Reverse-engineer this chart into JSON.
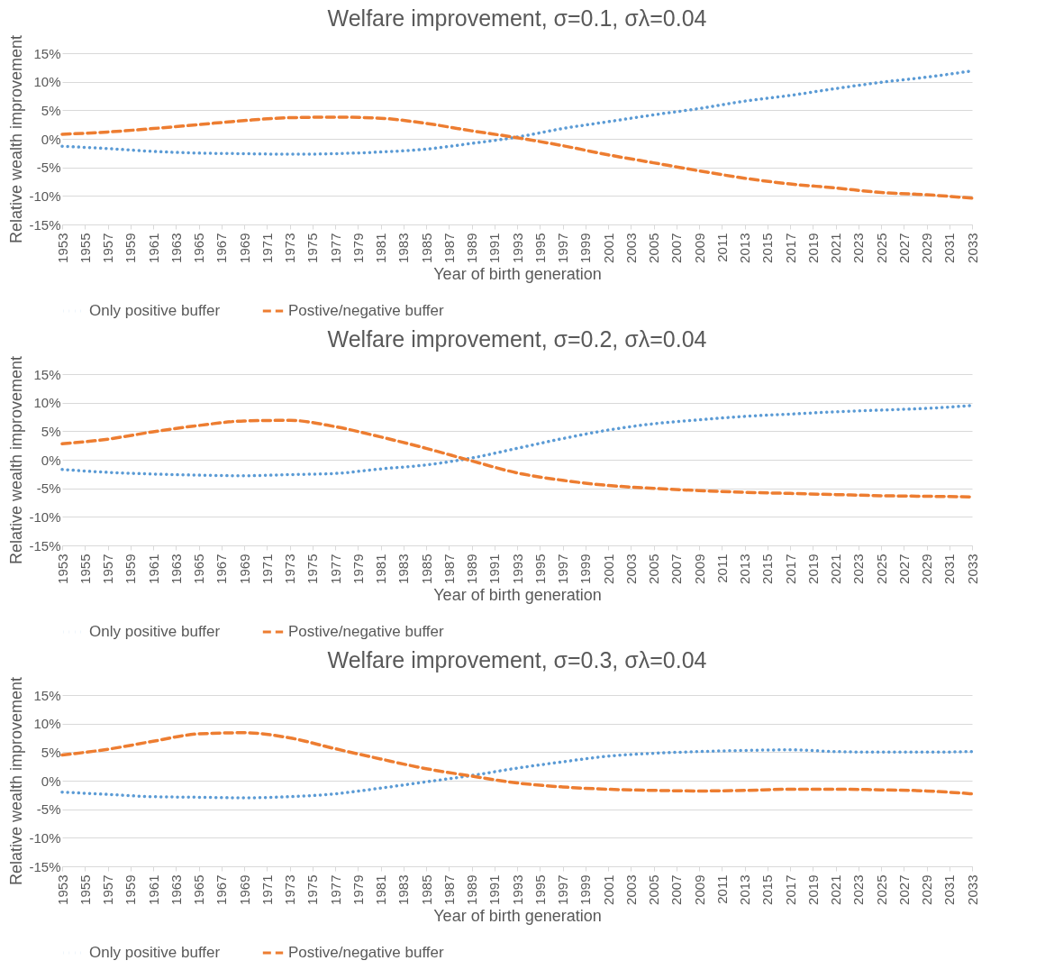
{
  "chart_data": [
    {
      "type": "line",
      "title": "Welfare improvement, σ=0.1, σλ=0.04",
      "xlabel": "Year of birth generation",
      "ylabel": "Relative wealth improvement",
      "x": [
        1953,
        1957,
        1961,
        1965,
        1969,
        1973,
        1977,
        1981,
        1985,
        1989,
        1993,
        1997,
        2001,
        2005,
        2009,
        2013,
        2017,
        2021,
        2025,
        2029,
        2033
      ],
      "xlim": [
        1953,
        2033
      ],
      "xticks": [
        1953,
        1955,
        1957,
        1959,
        1961,
        1963,
        1965,
        1967,
        1969,
        1971,
        1973,
        1975,
        1977,
        1979,
        1981,
        1983,
        1985,
        1987,
        1989,
        1991,
        1993,
        1995,
        1997,
        1999,
        2001,
        2003,
        2005,
        2007,
        2009,
        2011,
        2013,
        2015,
        2017,
        2019,
        2021,
        2023,
        2025,
        2027,
        2029,
        2031,
        2033
      ],
      "ylim": [
        -15,
        15
      ],
      "yticks": [
        {
          "value": -15,
          "label": "-15%"
        },
        {
          "value": -10,
          "label": "-10%"
        },
        {
          "value": -5,
          "label": "-5%"
        },
        {
          "value": 0,
          "label": "0%"
        },
        {
          "value": 5,
          "label": "5%"
        },
        {
          "value": 10,
          "label": "10%"
        },
        {
          "value": 15,
          "label": "15%"
        }
      ],
      "grid": "y",
      "legend": "bottom",
      "series": [
        {
          "name": "Only positive buffer",
          "color": "#5b9bd5",
          "line_style": "dotted",
          "values": [
            -1.3,
            -1.7,
            -2.2,
            -2.5,
            -2.6,
            -2.7,
            -2.6,
            -2.3,
            -1.8,
            -0.8,
            0.3,
            1.8,
            3.0,
            4.2,
            5.3,
            6.6,
            7.6,
            8.8,
            9.9,
            10.8,
            11.9
          ]
        },
        {
          "name": "Postive/negative buffer",
          "color": "#ed7d31",
          "line_style": "dashed",
          "values": [
            0.8,
            1.2,
            1.8,
            2.5,
            3.2,
            3.7,
            3.8,
            3.6,
            2.7,
            1.4,
            0.2,
            -1.2,
            -2.8,
            -4.2,
            -5.6,
            -6.9,
            -7.9,
            -8.6,
            -9.4,
            -9.8,
            -10.4
          ]
        }
      ]
    },
    {
      "type": "line",
      "title": "Welfare improvement, σ=0.2, σλ=0.04",
      "xlabel": "Year of birth generation",
      "ylabel": "Relative wealth improvement",
      "x": [
        1953,
        1957,
        1961,
        1965,
        1969,
        1973,
        1977,
        1981,
        1985,
        1989,
        1993,
        1997,
        2001,
        2005,
        2009,
        2013,
        2017,
        2021,
        2025,
        2029,
        2033
      ],
      "xlim": [
        1953,
        2033
      ],
      "xticks": [
        1953,
        1955,
        1957,
        1959,
        1961,
        1963,
        1965,
        1967,
        1969,
        1971,
        1973,
        1975,
        1977,
        1979,
        1981,
        1983,
        1985,
        1987,
        1989,
        1991,
        1993,
        1995,
        1997,
        1999,
        2001,
        2003,
        2005,
        2007,
        2009,
        2011,
        2013,
        2015,
        2017,
        2019,
        2021,
        2023,
        2025,
        2027,
        2029,
        2031,
        2033
      ],
      "ylim": [
        -15,
        15
      ],
      "yticks": [
        {
          "value": -15,
          "label": "-15%"
        },
        {
          "value": -10,
          "label": "-10%"
        },
        {
          "value": -5,
          "label": "-5%"
        },
        {
          "value": 0,
          "label": "0%"
        },
        {
          "value": 5,
          "label": "5%"
        },
        {
          "value": 10,
          "label": "10%"
        },
        {
          "value": 15,
          "label": "15%"
        }
      ],
      "grid": "y",
      "legend": "bottom",
      "series": [
        {
          "name": "Only positive buffer",
          "color": "#5b9bd5",
          "line_style": "dotted",
          "values": [
            -1.7,
            -2.2,
            -2.5,
            -2.7,
            -2.8,
            -2.6,
            -2.4,
            -1.6,
            -0.9,
            0.3,
            2.0,
            3.7,
            5.2,
            6.3,
            7.0,
            7.6,
            8.0,
            8.4,
            8.7,
            9.0,
            9.5
          ]
        },
        {
          "name": "Postive/negative buffer",
          "color": "#ed7d31",
          "line_style": "dashed",
          "values": [
            2.8,
            3.6,
            4.9,
            6.0,
            6.8,
            6.9,
            5.8,
            4.0,
            2.0,
            -0.2,
            -2.3,
            -3.6,
            -4.5,
            -5.0,
            -5.4,
            -5.7,
            -5.9,
            -6.1,
            -6.3,
            -6.4,
            -6.5
          ]
        }
      ]
    },
    {
      "type": "line",
      "title": "Welfare improvement,  σ=0.3, σλ=0.04",
      "xlabel": "Year of birth generation",
      "ylabel": "Relative wealth improvement",
      "x": [
        1953,
        1957,
        1961,
        1965,
        1969,
        1973,
        1977,
        1981,
        1985,
        1989,
        1993,
        1997,
        2001,
        2005,
        2009,
        2013,
        2017,
        2021,
        2025,
        2029,
        2033
      ],
      "xlim": [
        1953,
        2033
      ],
      "xticks": [
        1953,
        1955,
        1957,
        1959,
        1961,
        1963,
        1965,
        1967,
        1969,
        1971,
        1973,
        1975,
        1977,
        1979,
        1981,
        1983,
        1985,
        1987,
        1989,
        1991,
        1993,
        1995,
        1997,
        1999,
        2001,
        2003,
        2005,
        2007,
        2009,
        2011,
        2013,
        2015,
        2017,
        2019,
        2021,
        2023,
        2025,
        2027,
        2029,
        2031,
        2033
      ],
      "ylim": [
        -15,
        15
      ],
      "yticks": [
        {
          "value": -15,
          "label": "-15%"
        },
        {
          "value": -10,
          "label": "-10%"
        },
        {
          "value": -5,
          "label": "-5%"
        },
        {
          "value": 0,
          "label": "0%"
        },
        {
          "value": 5,
          "label": "5%"
        },
        {
          "value": 10,
          "label": "10%"
        },
        {
          "value": 15,
          "label": "15%"
        }
      ],
      "grid": "y",
      "legend": "bottom",
      "series": [
        {
          "name": "Only positive buffer",
          "color": "#5b9bd5",
          "line_style": "dotted",
          "values": [
            -2.0,
            -2.4,
            -2.8,
            -2.9,
            -3.0,
            -2.8,
            -2.3,
            -1.3,
            -0.2,
            0.9,
            2.2,
            3.3,
            4.3,
            4.8,
            5.1,
            5.3,
            5.4,
            5.1,
            5.0,
            5.0,
            5.1
          ]
        },
        {
          "name": "Postive/negative buffer",
          "color": "#ed7d31",
          "line_style": "dashed",
          "values": [
            4.5,
            5.5,
            6.9,
            8.2,
            8.4,
            7.5,
            5.6,
            3.8,
            2.1,
            0.8,
            -0.4,
            -1.1,
            -1.5,
            -1.7,
            -1.8,
            -1.7,
            -1.5,
            -1.5,
            -1.6,
            -1.8,
            -2.3
          ]
        }
      ]
    }
  ]
}
